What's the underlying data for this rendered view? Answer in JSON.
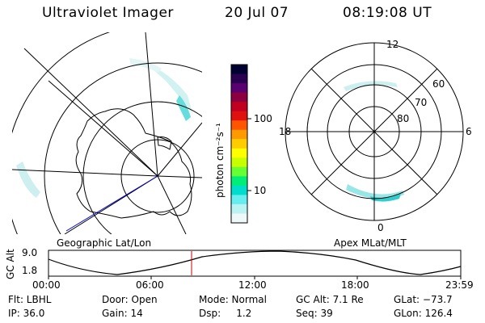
{
  "header": {
    "title": "Ultraviolet Imager",
    "date": "20 Jul 07",
    "time": "08:19:08 UT"
  },
  "left_map": {
    "caption": "Geographic Lat/Lon"
  },
  "right_map": {
    "caption": "Apex MLat/MLT",
    "mlt_labels": {
      "top": "12",
      "left": "18",
      "right": "6",
      "bottom": "0"
    },
    "lat_labels": [
      "60",
      "70",
      "80"
    ]
  },
  "colorbar": {
    "label": "photon cm⁻²s⁻¹",
    "ticks": [
      "100",
      "10"
    ],
    "colors": [
      "#000033",
      "#2a0050",
      "#5a0070",
      "#8c0040",
      "#c00020",
      "#e01010",
      "#ff5500",
      "#ff9900",
      "#ffcc00",
      "#ffff00",
      "#c8ff00",
      "#66ff33",
      "#00ee77",
      "#00ddcc",
      "#66eeee",
      "#bbf3f3",
      "#eef8f8"
    ]
  },
  "altitude_plot": {
    "ylabel": "GC Alt",
    "y_ticks": [
      "9.0",
      "1.8"
    ],
    "x_ticks": [
      "00:00",
      "06:00",
      "12:00",
      "18:00",
      "23:59"
    ]
  },
  "info": {
    "flt": "Flt: LBHL",
    "ip": "IP: 36.0",
    "door": "Door: Open",
    "gain": "Gain: 14",
    "mode": "Mode: Normal",
    "dsp": "Dsp:     1.2",
    "gcalt": "GC Alt: 7.1 Re",
    "seq": "Seq: 39",
    "glat": "GLat: −73.7",
    "glon": "GLon: 126.4"
  }
}
